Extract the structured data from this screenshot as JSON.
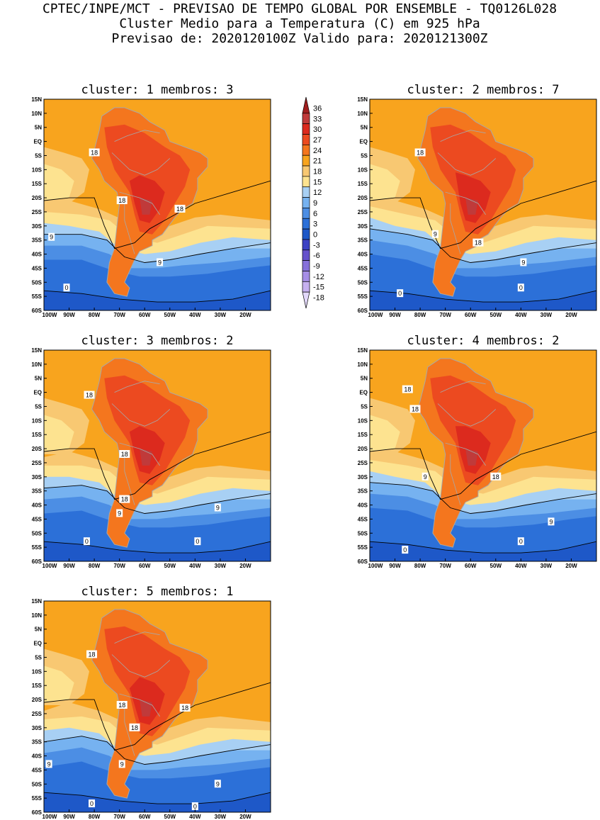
{
  "header": {
    "line1": "CPTEC/INPE/MCT - PREVISAO DE TEMPO GLOBAL POR ENSEMBLE - TQ0126L028",
    "line2": "Cluster Medio para a Temperatura (C) em 925 hPa",
    "line3": "Previsao de: 2020120100Z   Valido para: 2020121300Z"
  },
  "colorbar": {
    "levels": [
      "36",
      "33",
      "30",
      "27",
      "24",
      "21",
      "18",
      "15",
      "12",
      "9",
      "6",
      "3",
      "0",
      "-3",
      "-6",
      "-9",
      "-12",
      "-15",
      "-18"
    ],
    "colors": [
      "#a01e1e",
      "#c03a3a",
      "#dc2a1e",
      "#ec4a20",
      "#f4761e",
      "#f8a41e",
      "#f8c872",
      "#fde390",
      "#a8d0f4",
      "#76b2f0",
      "#4c8ee4",
      "#2c70d8",
      "#1e58c8",
      "#3c42c4",
      "#6652cc",
      "#8670da",
      "#a68ee6",
      "#c6b0f0",
      "#e2d8fa"
    ]
  },
  "chart_data": [
    {
      "type": "heatmap",
      "title": "cluster: 1  membros: 3",
      "x_ticks": [
        "100W",
        "90W",
        "80W",
        "70W",
        "60W",
        "50W",
        "40W",
        "30W",
        "20W"
      ],
      "y_ticks": [
        "15N",
        "10N",
        "5N",
        "EQ",
        "5S",
        "10S",
        "15S",
        "20S",
        "25S",
        "30S",
        "35S",
        "40S",
        "45S",
        "50S",
        "55S",
        "60S"
      ],
      "contour_labels": [
        "18",
        "18",
        "18",
        "9",
        "9",
        "0"
      ]
    },
    {
      "type": "heatmap",
      "title": "cluster: 2  membros: 7",
      "x_ticks": [
        "100W",
        "90W",
        "80W",
        "70W",
        "60W",
        "50W",
        "40W",
        "30W",
        "20W"
      ],
      "y_ticks": [
        "15N",
        "10N",
        "5N",
        "EQ",
        "5S",
        "10S",
        "15S",
        "20S",
        "25S",
        "30S",
        "35S",
        "40S",
        "45S",
        "50S",
        "55S",
        "60S"
      ],
      "contour_labels": [
        "18",
        "18",
        "9",
        "9",
        "0",
        "0"
      ]
    },
    {
      "type": "heatmap",
      "title": "cluster: 3  membros: 2",
      "x_ticks": [
        "100W",
        "90W",
        "80W",
        "70W",
        "60W",
        "50W",
        "40W",
        "30W",
        "20W"
      ],
      "y_ticks": [
        "15N",
        "10N",
        "5N",
        "EQ",
        "5S",
        "10S",
        "15S",
        "20S",
        "25S",
        "30S",
        "35S",
        "40S",
        "45S",
        "50S",
        "55S",
        "60S"
      ],
      "contour_labels": [
        "18",
        "18",
        "18",
        "9",
        "9",
        "0",
        "0"
      ]
    },
    {
      "type": "heatmap",
      "title": "cluster: 4  membros: 2",
      "x_ticks": [
        "100W",
        "90W",
        "80W",
        "70W",
        "60W",
        "50W",
        "40W",
        "30W",
        "20W"
      ],
      "y_ticks": [
        "15N",
        "10N",
        "5N",
        "EQ",
        "5S",
        "10S",
        "15S",
        "20S",
        "25S",
        "30S",
        "35S",
        "40S",
        "45S",
        "50S",
        "55S",
        "60S"
      ],
      "contour_labels": [
        "18",
        "18",
        "18",
        "9",
        "9",
        "0",
        "0"
      ]
    },
    {
      "type": "heatmap",
      "title": "cluster: 5  membros: 1",
      "x_ticks": [
        "100W",
        "90W",
        "80W",
        "70W",
        "60W",
        "50W",
        "40W",
        "30W",
        "20W"
      ],
      "y_ticks": [
        "15N",
        "10N",
        "5N",
        "EQ",
        "5S",
        "10S",
        "15S",
        "20S",
        "25S",
        "30S",
        "35S",
        "40S",
        "45S",
        "50S",
        "55S",
        "60S"
      ],
      "contour_labels": [
        "18",
        "18",
        "18",
        "18",
        "9",
        "9",
        "9",
        "0",
        "0"
      ]
    }
  ]
}
